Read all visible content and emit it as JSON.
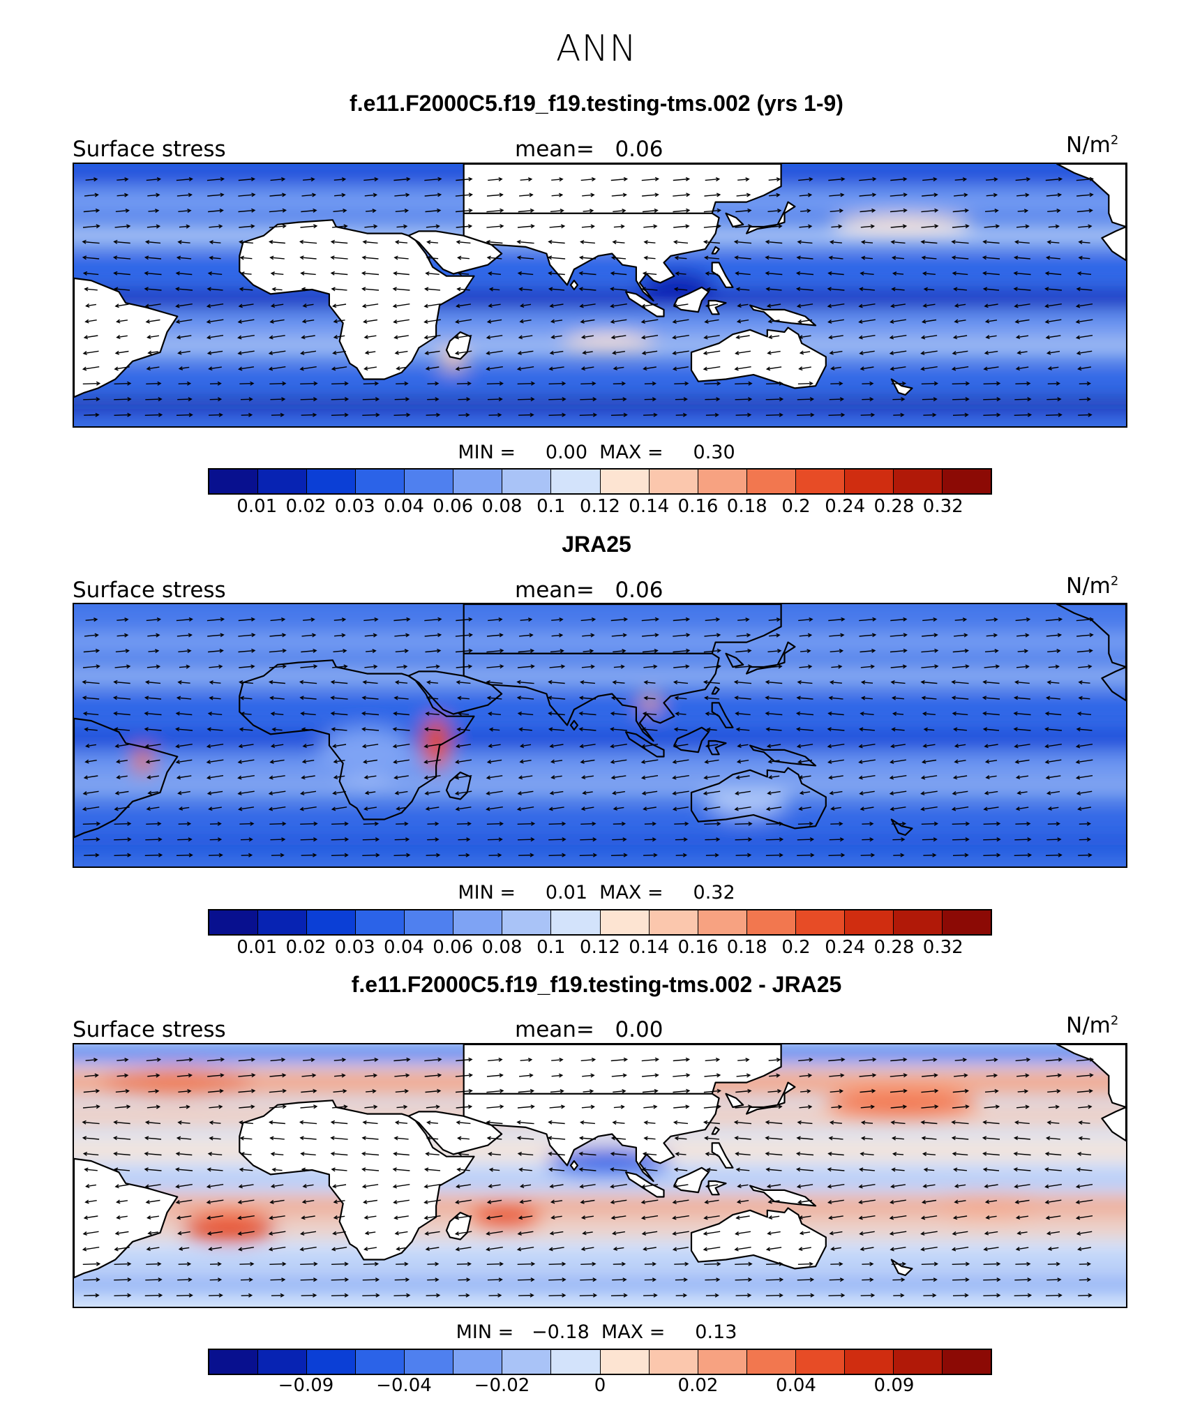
{
  "figure": {
    "title": "ANN"
  },
  "palette": [
    "#08108f",
    "#0723b3",
    "#0b3fd6",
    "#2b63e8",
    "#4f80ef",
    "#7ea3f4",
    "#a9c3f7",
    "#d3e3fb",
    "#fde4d2",
    "#fbc7ad",
    "#f7a281",
    "#f2774f",
    "#e74c26",
    "#d02d10",
    "#b11908",
    "#8c0a05"
  ],
  "land_color": "#ffffff",
  "panels": [
    {
      "title": "f.e11.F2000C5.f19_f19.testing-tms.002 (yrs 1-9)",
      "left_label": "Surface stress",
      "mean_label": "mean=   0.06",
      "units_base": "N/m",
      "units_exp": "2",
      "minmax": "MIN =     0.00  MAX =     0.30",
      "cbar_ticks": [
        "0.01",
        "0.02",
        "0.03",
        "0.04",
        "0.06",
        "0.08",
        "0.1",
        "0.12",
        "0.14",
        "0.16",
        "0.18",
        "0.2",
        "0.24",
        "0.28",
        "0.32"
      ],
      "land_masked": true,
      "map": {
        "base": "#3a6fe6",
        "bands": [
          {
            "lat": 58,
            "w": 6,
            "c": "#0b3fd6"
          },
          {
            "lat": 45,
            "w": 10,
            "c": "#7ea3f4"
          },
          {
            "lat": 30,
            "w": 7,
            "c": "#d3e3fb"
          },
          {
            "lat": 15,
            "w": 8,
            "c": "#2b63e8"
          },
          {
            "lat": 2,
            "w": 6,
            "c": "#0723b3"
          },
          {
            "lat": -10,
            "w": 8,
            "c": "#7ea3f4"
          },
          {
            "lat": -20,
            "w": 6,
            "c": "#d3e3fb"
          },
          {
            "lat": -35,
            "w": 5,
            "c": "#2b63e8"
          },
          {
            "lat": -45,
            "w": 4,
            "c": "#08108f"
          }
        ],
        "blobs": [
          {
            "lon": 175,
            "lat": 35,
            "rx": 20,
            "ry": 4,
            "c": "#fde4d2"
          },
          {
            "lon": 90,
            "lat": -18,
            "rx": 14,
            "ry": 4,
            "c": "#fde4d2"
          },
          {
            "lon": 110,
            "lat": 8,
            "rx": 10,
            "ry": 6,
            "c": "#0723b3"
          },
          {
            "lon": 45,
            "lat": -25,
            "rx": 4,
            "ry": 5,
            "c": "#fbc7ad"
          }
        ]
      }
    },
    {
      "title": "JRA25",
      "left_label": "Surface stress",
      "mean_label": "mean=   0.06",
      "units_base": "N/m",
      "units_exp": "2",
      "minmax": "MIN =     0.01  MAX =     0.32",
      "cbar_ticks": [
        "0.01",
        "0.02",
        "0.03",
        "0.04",
        "0.06",
        "0.08",
        "0.1",
        "0.12",
        "0.14",
        "0.16",
        "0.18",
        "0.2",
        "0.24",
        "0.28",
        "0.32"
      ],
      "land_masked": false,
      "map": {
        "base": "#3a6fe6",
        "bands": [
          {
            "lat": 58,
            "w": 6,
            "c": "#4f80ef"
          },
          {
            "lat": 45,
            "w": 10,
            "c": "#7ea3f4"
          },
          {
            "lat": 30,
            "w": 7,
            "c": "#a9c3f7"
          },
          {
            "lat": 15,
            "w": 8,
            "c": "#2b63e8"
          },
          {
            "lat": 2,
            "w": 6,
            "c": "#0b3fd6"
          },
          {
            "lat": -10,
            "w": 8,
            "c": "#7ea3f4"
          },
          {
            "lat": -20,
            "w": 6,
            "c": "#a9c3f7"
          },
          {
            "lat": -35,
            "w": 5,
            "c": "#2b63e8"
          },
          {
            "lat": -45,
            "w": 4,
            "c": "#0b3fd6"
          }
        ],
        "blobs": [
          {
            "lon": 20,
            "lat": -5,
            "rx": 14,
            "ry": 12,
            "c": "#7ea3f4"
          },
          {
            "lon": 40,
            "lat": 0,
            "rx": 4,
            "ry": 12,
            "c": "#e74c26"
          },
          {
            "lon": -45,
            "lat": -8,
            "rx": 3,
            "ry": 6,
            "c": "#f2774f"
          },
          {
            "lon": -72,
            "lat": -12,
            "rx": 3,
            "ry": 5,
            "c": "#f7a281"
          },
          {
            "lon": 130,
            "lat": -25,
            "rx": 12,
            "ry": 8,
            "c": "#a9c3f7"
          },
          {
            "lon": 102,
            "lat": 18,
            "rx": 3,
            "ry": 4,
            "c": "#f7a281"
          }
        ]
      }
    },
    {
      "title": "f.e11.F2000C5.f19_f19.testing-tms.002 - JRA25",
      "left_label": "Surface stress",
      "mean_label": "mean=   0.00",
      "units_base": "N/m",
      "units_exp": "2",
      "minmax": "MIN =   −0.18  MAX =     0.13",
      "cbar_ticks": [
        "",
        "−0.09",
        "",
        "−0.04",
        "",
        "−0.02",
        "",
        "0",
        "",
        "0.02",
        "",
        "0.04",
        "",
        "0.09",
        ""
      ],
      "land_masked": true,
      "map": {
        "base": "#d3e3fb",
        "bands": [
          {
            "lat": 58,
            "w": 6,
            "c": "#2b63e8"
          },
          {
            "lat": 45,
            "w": 10,
            "c": "#f7a281"
          },
          {
            "lat": 30,
            "w": 7,
            "c": "#fbc7ad"
          },
          {
            "lat": 15,
            "w": 8,
            "c": "#fde4d2"
          },
          {
            "lat": 2,
            "w": 6,
            "c": "#a9c3f7"
          },
          {
            "lat": -10,
            "w": 8,
            "c": "#f7a281"
          },
          {
            "lat": -20,
            "w": 6,
            "c": "#fbc7ad"
          },
          {
            "lat": -35,
            "w": 5,
            "c": "#a9c3f7"
          },
          {
            "lat": -45,
            "w": 4,
            "c": "#4f80ef"
          }
        ],
        "blobs": [
          {
            "lon": 175,
            "lat": 35,
            "rx": 22,
            "ry": 6,
            "c": "#f2774f"
          },
          {
            "lon": -35,
            "lat": 45,
            "rx": 22,
            "ry": 6,
            "c": "#f2774f"
          },
          {
            "lon": -20,
            "lat": -20,
            "rx": 14,
            "ry": 6,
            "c": "#e74c26"
          },
          {
            "lon": 90,
            "lat": 10,
            "rx": 18,
            "ry": 6,
            "c": "#2b63e8"
          },
          {
            "lon": 60,
            "lat": -15,
            "rx": 10,
            "ry": 5,
            "c": "#e74c26"
          },
          {
            "lon": 200,
            "lat": -10,
            "rx": 25,
            "ry": 5,
            "c": "#f7a281"
          }
        ]
      }
    }
  ]
}
